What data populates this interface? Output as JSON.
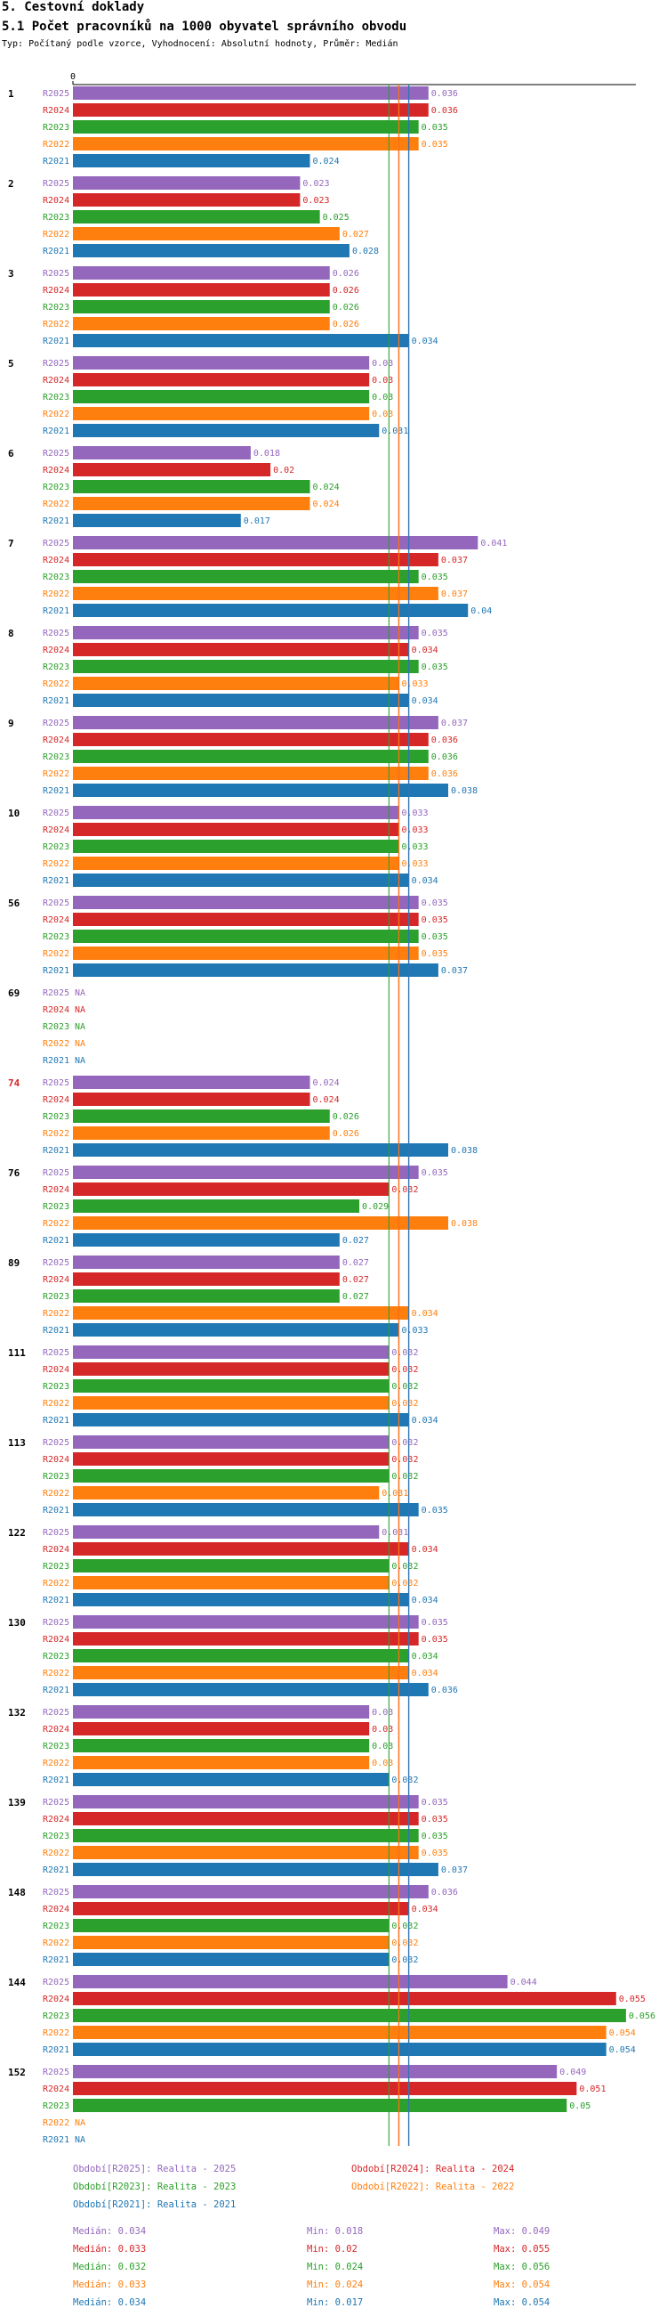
{
  "header": {
    "section": "5. Cestovní doklady",
    "title": "5.1 Počet pracovníků na 1000 obyvatel správního obvodu",
    "subtitle": "Typ: Počítaný podle vzorce, Vyhodnocení: Absolutní hodnoty, Průměr: Medián"
  },
  "chart_data": {
    "type": "bar",
    "orientation": "horizontal",
    "x_axis_start_label": "0",
    "xlim": [
      0,
      0.057
    ],
    "missing_label": "NA",
    "highlight_category": "74",
    "series": [
      {
        "name": "R2025",
        "color": "#9467bd"
      },
      {
        "name": "R2024",
        "color": "#d62728"
      },
      {
        "name": "R2023",
        "color": "#2ca02c"
      },
      {
        "name": "R2022",
        "color": "#ff7f0e"
      },
      {
        "name": "R2021",
        "color": "#1f77b4"
      }
    ],
    "groups": [
      {
        "label": "1",
        "values": [
          "0.036",
          "0.036",
          "0.035",
          "0.035",
          "0.024"
        ]
      },
      {
        "label": "2",
        "values": [
          "0.023",
          "0.023",
          "0.025",
          "0.027",
          "0.028"
        ]
      },
      {
        "label": "3",
        "values": [
          "0.026",
          "0.026",
          "0.026",
          "0.026",
          "0.034"
        ]
      },
      {
        "label": "5",
        "values": [
          "0.03",
          "0.03",
          "0.03",
          "0.03",
          "0.031"
        ]
      },
      {
        "label": "6",
        "values": [
          "0.018",
          "0.02",
          "0.024",
          "0.024",
          "0.017"
        ]
      },
      {
        "label": "7",
        "values": [
          "0.041",
          "0.037",
          "0.035",
          "0.037",
          "0.04"
        ]
      },
      {
        "label": "8",
        "values": [
          "0.035",
          "0.034",
          "0.035",
          "0.033",
          "0.034"
        ]
      },
      {
        "label": "9",
        "values": [
          "0.037",
          "0.036",
          "0.036",
          "0.036",
          "0.038"
        ]
      },
      {
        "label": "10",
        "values": [
          "0.033",
          "0.033",
          "0.033",
          "0.033",
          "0.034"
        ]
      },
      {
        "label": "56",
        "values": [
          "0.035",
          "0.035",
          "0.035",
          "0.035",
          "0.037"
        ]
      },
      {
        "label": "69",
        "values": [
          null,
          null,
          null,
          null,
          null
        ]
      },
      {
        "label": "74",
        "values": [
          "0.024",
          "0.024",
          "0.026",
          "0.026",
          "0.038"
        ]
      },
      {
        "label": "76",
        "values": [
          "0.035",
          "0.032",
          "0.029",
          "0.038",
          "0.027"
        ]
      },
      {
        "label": "89",
        "values": [
          "0.027",
          "0.027",
          "0.027",
          "0.034",
          "0.033"
        ]
      },
      {
        "label": "111",
        "values": [
          "0.032",
          "0.032",
          "0.032",
          "0.032",
          "0.034"
        ]
      },
      {
        "label": "113",
        "values": [
          "0.032",
          "0.032",
          "0.032",
          "0.031",
          "0.035"
        ]
      },
      {
        "label": "122",
        "values": [
          "0.031",
          "0.034",
          "0.032",
          "0.032",
          "0.034"
        ]
      },
      {
        "label": "130",
        "values": [
          "0.035",
          "0.035",
          "0.034",
          "0.034",
          "0.036"
        ]
      },
      {
        "label": "132",
        "values": [
          "0.03",
          "0.03",
          "0.03",
          "0.03",
          "0.032"
        ]
      },
      {
        "label": "139",
        "values": [
          "0.035",
          "0.035",
          "0.035",
          "0.035",
          "0.037"
        ]
      },
      {
        "label": "148",
        "values": [
          "0.036",
          "0.034",
          "0.032",
          "0.032",
          "0.032"
        ]
      },
      {
        "label": "144",
        "values": [
          "0.044",
          "0.055",
          "0.056",
          "0.054",
          "0.054"
        ]
      },
      {
        "label": "152",
        "values": [
          "0.049",
          "0.051",
          "0.05",
          null,
          null
        ]
      }
    ],
    "reference_lines": [
      {
        "series": "R2025",
        "median": 0.034
      },
      {
        "series": "R2024",
        "median": 0.033
      },
      {
        "series": "R2023",
        "median": 0.032
      },
      {
        "series": "R2022",
        "median": 0.033
      },
      {
        "series": "R2021",
        "median": 0.034
      }
    ],
    "legend": [
      {
        "series": "R2025",
        "text": "Období[R2025]: Realita - 2025"
      },
      {
        "series": "R2024",
        "text": "Období[R2024]: Realita - 2024"
      },
      {
        "series": "R2023",
        "text": "Období[R2023]: Realita - 2023"
      },
      {
        "series": "R2022",
        "text": "Období[R2022]: Realita - 2022"
      },
      {
        "series": "R2021",
        "text": "Období[R2021]: Realita - 2021"
      }
    ],
    "stats": [
      {
        "series": "R2025",
        "median": "Medián: 0.034",
        "min": "Min: 0.018",
        "max": "Max: 0.049"
      },
      {
        "series": "R2024",
        "median": "Medián: 0.033",
        "min": "Min: 0.02",
        "max": "Max: 0.055"
      },
      {
        "series": "R2023",
        "median": "Medián: 0.032",
        "min": "Min: 0.024",
        "max": "Max: 0.056"
      },
      {
        "series": "R2022",
        "median": "Medián: 0.033",
        "min": "Min: 0.024",
        "max": "Max: 0.054"
      },
      {
        "series": "R2021",
        "median": "Medián: 0.034",
        "min": "Min: 0.017",
        "max": "Max: 0.054"
      }
    ]
  }
}
